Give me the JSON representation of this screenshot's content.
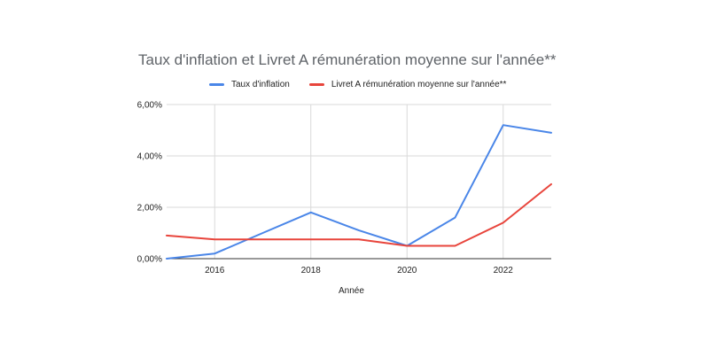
{
  "chart_data": {
    "type": "line",
    "title": "Taux d'inflation et Livret A rémunération moyenne sur l'année**",
    "xlabel": "Année",
    "ylabel": "",
    "x": [
      2015,
      2016,
      2017,
      2018,
      2019,
      2020,
      2021,
      2022,
      2023
    ],
    "xlim": [
      2015,
      2023
    ],
    "ylim": [
      0,
      6
    ],
    "x_ticks": [
      "2016",
      "2018",
      "2020",
      "2022"
    ],
    "y_ticks": [
      "0,00%",
      "2,00%",
      "4,00%",
      "6,00%"
    ],
    "grid": true,
    "legend_position": "top",
    "series": [
      {
        "name": "Taux d'inflation",
        "color": "#4a86e8",
        "values": [
          0.0,
          0.2,
          1.0,
          1.8,
          1.1,
          0.5,
          1.6,
          5.2,
          4.9
        ]
      },
      {
        "name": "Livret A rémunération moyenne sur l'année**",
        "color": "#e8453c",
        "values": [
          0.9,
          0.75,
          0.75,
          0.75,
          0.75,
          0.5,
          0.5,
          1.4,
          2.9
        ]
      }
    ]
  }
}
